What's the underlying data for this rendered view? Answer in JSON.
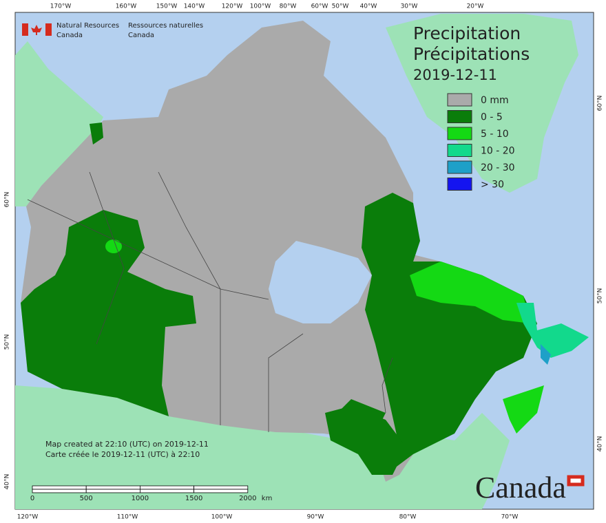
{
  "header": {
    "agency_en": [
      "Natural Resources",
      "Canada"
    ],
    "agency_fr": [
      "Ressources naturelles",
      "Canada"
    ]
  },
  "title": {
    "en": "Precipitation",
    "fr": "Précipitations",
    "date": "2019-12-11"
  },
  "legend": {
    "items": [
      {
        "label": "0 mm",
        "color": "#aaaaaa"
      },
      {
        "label": "0 - 5",
        "color": "#0a7d0a"
      },
      {
        "label": "5 - 10",
        "color": "#14d914"
      },
      {
        "label": "10 - 20",
        "color": "#12d98c"
      },
      {
        "label": "20 - 30",
        "color": "#1ea0c8"
      },
      {
        "label": "> 30",
        "color": "#1414f0"
      }
    ]
  },
  "top_labels": [
    "170°W",
    "160°W",
    "150°W",
    "140°W",
    "120°W",
    "100°W",
    "80°W",
    "60°W",
    "50°W",
    "40°W",
    "30°W",
    "20°W"
  ],
  "bottom_labels": [
    "120°W",
    "110°W",
    "100°W",
    "90°W",
    "80°W",
    "70°W"
  ],
  "left_labels": [
    "60°N",
    "50°N",
    "40°N"
  ],
  "right_labels": [
    "60°N",
    "50°N",
    "40°N"
  ],
  "credits": [
    "Map created at 22:10 (UTC) on 2019-12-11",
    "Carte créée le 2019-12-11 (UTC) à 22:10"
  ],
  "scale_bar": {
    "labels": [
      "0",
      "500",
      "1000",
      "1500",
      "2000"
    ],
    "unit": "km"
  },
  "wordmark": "Canada"
}
